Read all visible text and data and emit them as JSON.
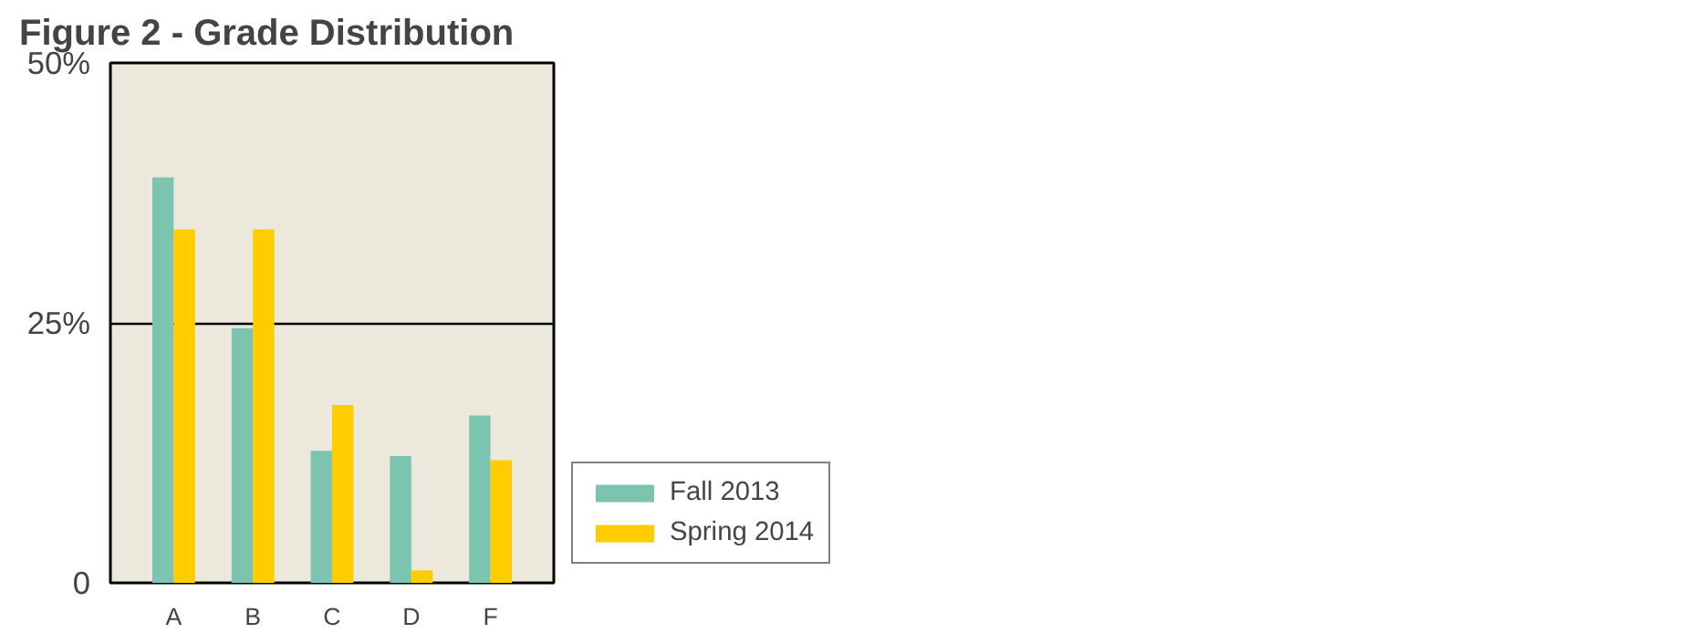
{
  "chart_data": {
    "type": "bar",
    "title": "Figure 2 - Grade Distribution",
    "categories": [
      "A",
      "B",
      "C",
      "D",
      "F"
    ],
    "series": [
      {
        "name": "Fall 2013",
        "color": "#7dc4b0",
        "values": [
          39,
          24.5,
          12.7,
          12.2,
          16.1
        ]
      },
      {
        "name": "Spring 2014",
        "color": "#ffcc00",
        "values": [
          34,
          34,
          17.1,
          1.2,
          11.8
        ]
      }
    ],
    "ylim": [
      0,
      50
    ],
    "yticks": [
      {
        "value": 0,
        "label": "0"
      },
      {
        "value": 25,
        "label": "25%"
      },
      {
        "value": 50,
        "label": "50%"
      }
    ],
    "grid": "y",
    "legend": "right"
  }
}
